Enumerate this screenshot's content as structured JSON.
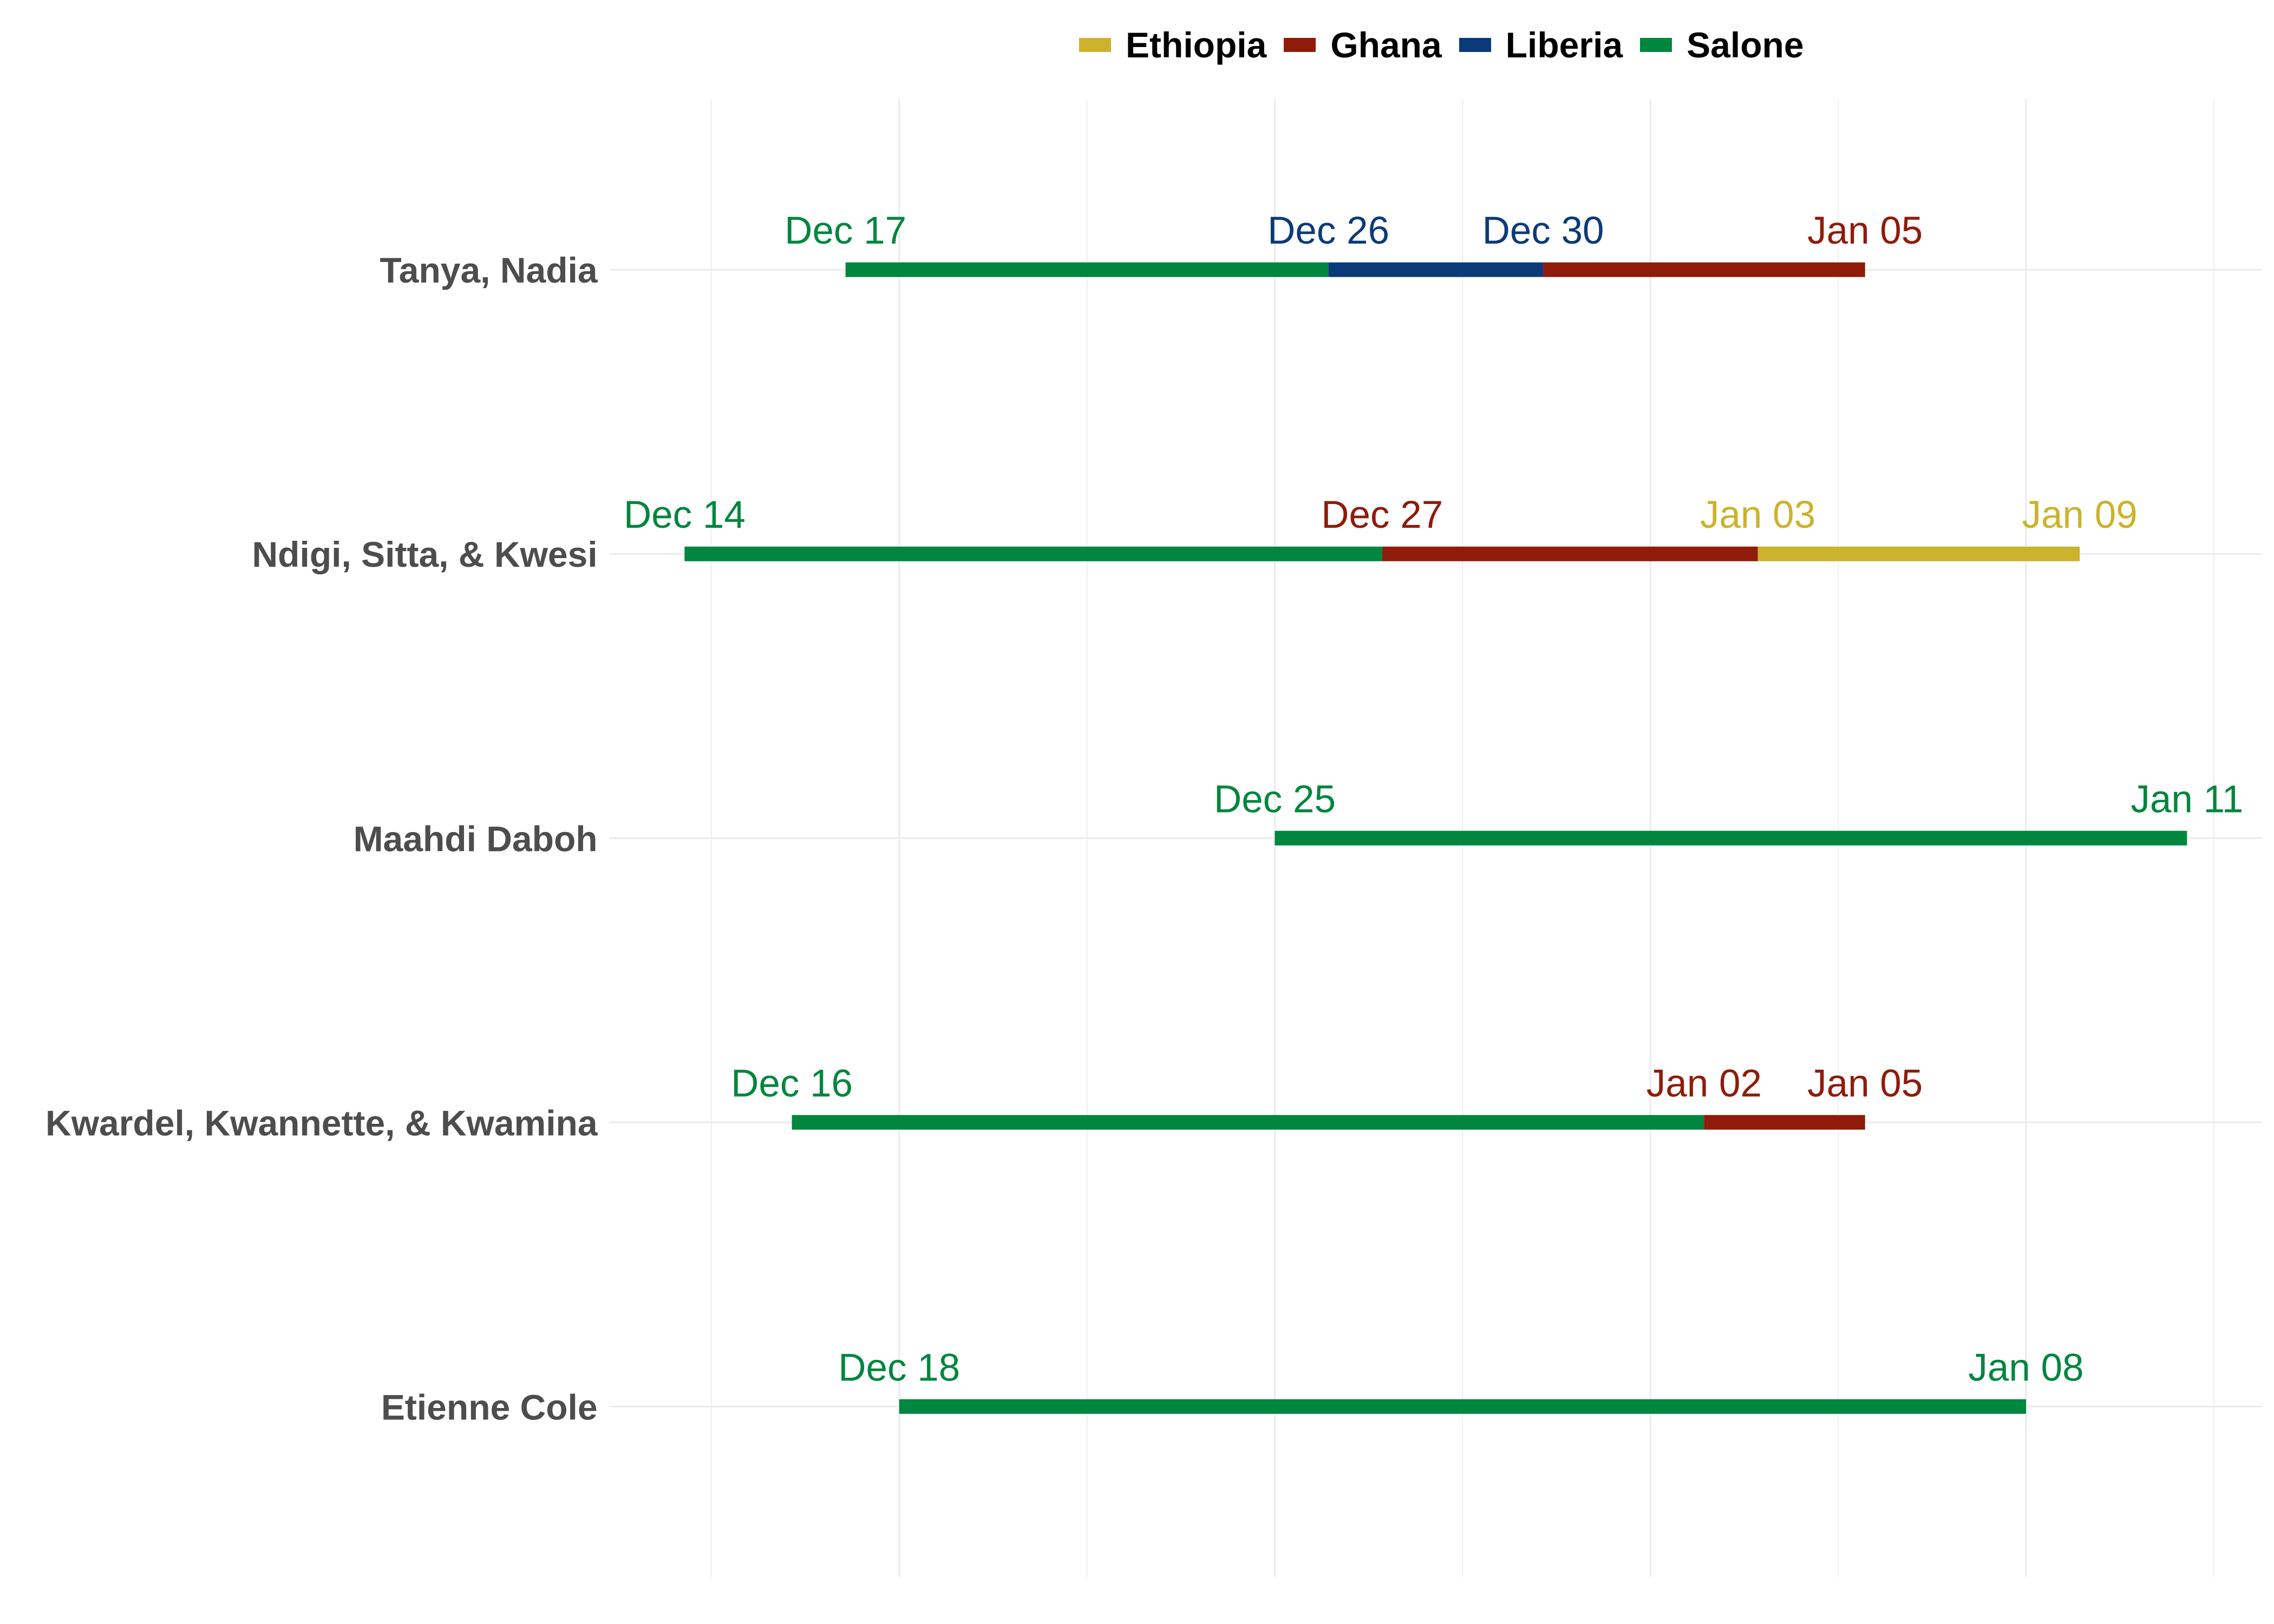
{
  "chart_data": {
    "type": "bar",
    "orientation": "horizontal",
    "xlim": [
      "Dec 14",
      "Jan 11"
    ],
    "grid": true,
    "legend_position": "top",
    "series": [
      {
        "name": "Ethiopia",
        "color": "#CDB22D"
      },
      {
        "name": "Ghana",
        "color": "#8F1B0A"
      },
      {
        "name": "Liberia",
        "color": "#0B3A78"
      },
      {
        "name": "Salone",
        "color": "#00863E"
      }
    ],
    "rows": [
      {
        "category": "Tanya, Nadia",
        "segments": [
          {
            "series": "Salone",
            "start": "Dec 17",
            "end": "Dec 26"
          },
          {
            "series": "Liberia",
            "start": "Dec 26",
            "end": "Dec 30"
          },
          {
            "series": "Ghana",
            "start": "Dec 30",
            "end": "Jan 05"
          }
        ],
        "labels": [
          {
            "date": "Dec 17",
            "series": "Salone"
          },
          {
            "date": "Dec 26",
            "series": "Liberia"
          },
          {
            "date": "Dec 30",
            "series": "Liberia"
          },
          {
            "date": "Jan 05",
            "series": "Ghana"
          }
        ]
      },
      {
        "category": "Ndigi, Sitta, & Kwesi",
        "segments": [
          {
            "series": "Salone",
            "start": "Dec 14",
            "end": "Dec 27"
          },
          {
            "series": "Ghana",
            "start": "Dec 27",
            "end": "Jan 03"
          },
          {
            "series": "Ethiopia",
            "start": "Jan 03",
            "end": "Jan 09"
          }
        ],
        "labels": [
          {
            "date": "Dec 14",
            "series": "Salone"
          },
          {
            "date": "Dec 27",
            "series": "Ghana"
          },
          {
            "date": "Jan 03",
            "series": "Ethiopia"
          },
          {
            "date": "Jan 09",
            "series": "Ethiopia"
          }
        ]
      },
      {
        "category": "Maahdi Daboh",
        "segments": [
          {
            "series": "Salone",
            "start": "Dec 25",
            "end": "Jan 11"
          }
        ],
        "labels": [
          {
            "date": "Dec 25",
            "series": "Salone"
          },
          {
            "date": "Jan 11",
            "series": "Salone"
          }
        ]
      },
      {
        "category": "Kwardel, Kwannette, & Kwamina",
        "segments": [
          {
            "series": "Salone",
            "start": "Dec 16",
            "end": "Jan 02"
          },
          {
            "series": "Ghana",
            "start": "Jan 02",
            "end": "Jan 05"
          }
        ],
        "labels": [
          {
            "date": "Dec 16",
            "series": "Salone"
          },
          {
            "date": "Jan 02",
            "series": "Ghana"
          },
          {
            "date": "Jan 05",
            "series": "Ghana"
          }
        ]
      },
      {
        "category": "Etienne Cole",
        "segments": [
          {
            "series": "Salone",
            "start": "Dec 18",
            "end": "Jan 08"
          }
        ],
        "labels": [
          {
            "date": "Dec 18",
            "series": "Salone"
          },
          {
            "date": "Jan 08",
            "series": "Salone"
          }
        ]
      }
    ]
  }
}
